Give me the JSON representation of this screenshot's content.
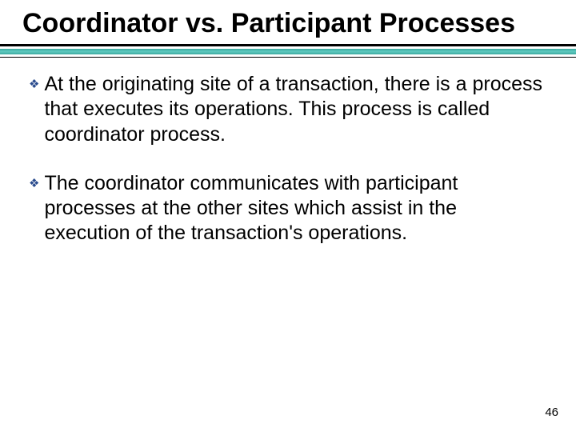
{
  "slide": {
    "title": "Coordinator vs. Participant Processes",
    "title_color": "#000000",
    "title_fontsize": 34,
    "title_fontweight": "bold",
    "underline": {
      "thick_color": "#000000",
      "thick_height": 3,
      "teal_gradient_start": "#3aa99f",
      "teal_gradient_mid": "#5fc9bf",
      "teal_height": 7,
      "thin_color": "#000000",
      "thin_height": 1
    },
    "bullets": [
      {
        "marker": "❖",
        "text": "At the originating site of a transaction, there is a process that executes its operations. This process is called coordinator process."
      },
      {
        "marker": "❖",
        "text": "The coordinator communicates with participant processes at the other sites which assist in the execution of the transaction's operations."
      }
    ],
    "bullet_marker_color": "#2a4b8d",
    "body_fontsize": 25,
    "body_color": "#000000",
    "background_color": "#ffffff",
    "page_number": "46",
    "page_number_fontsize": 15
  }
}
